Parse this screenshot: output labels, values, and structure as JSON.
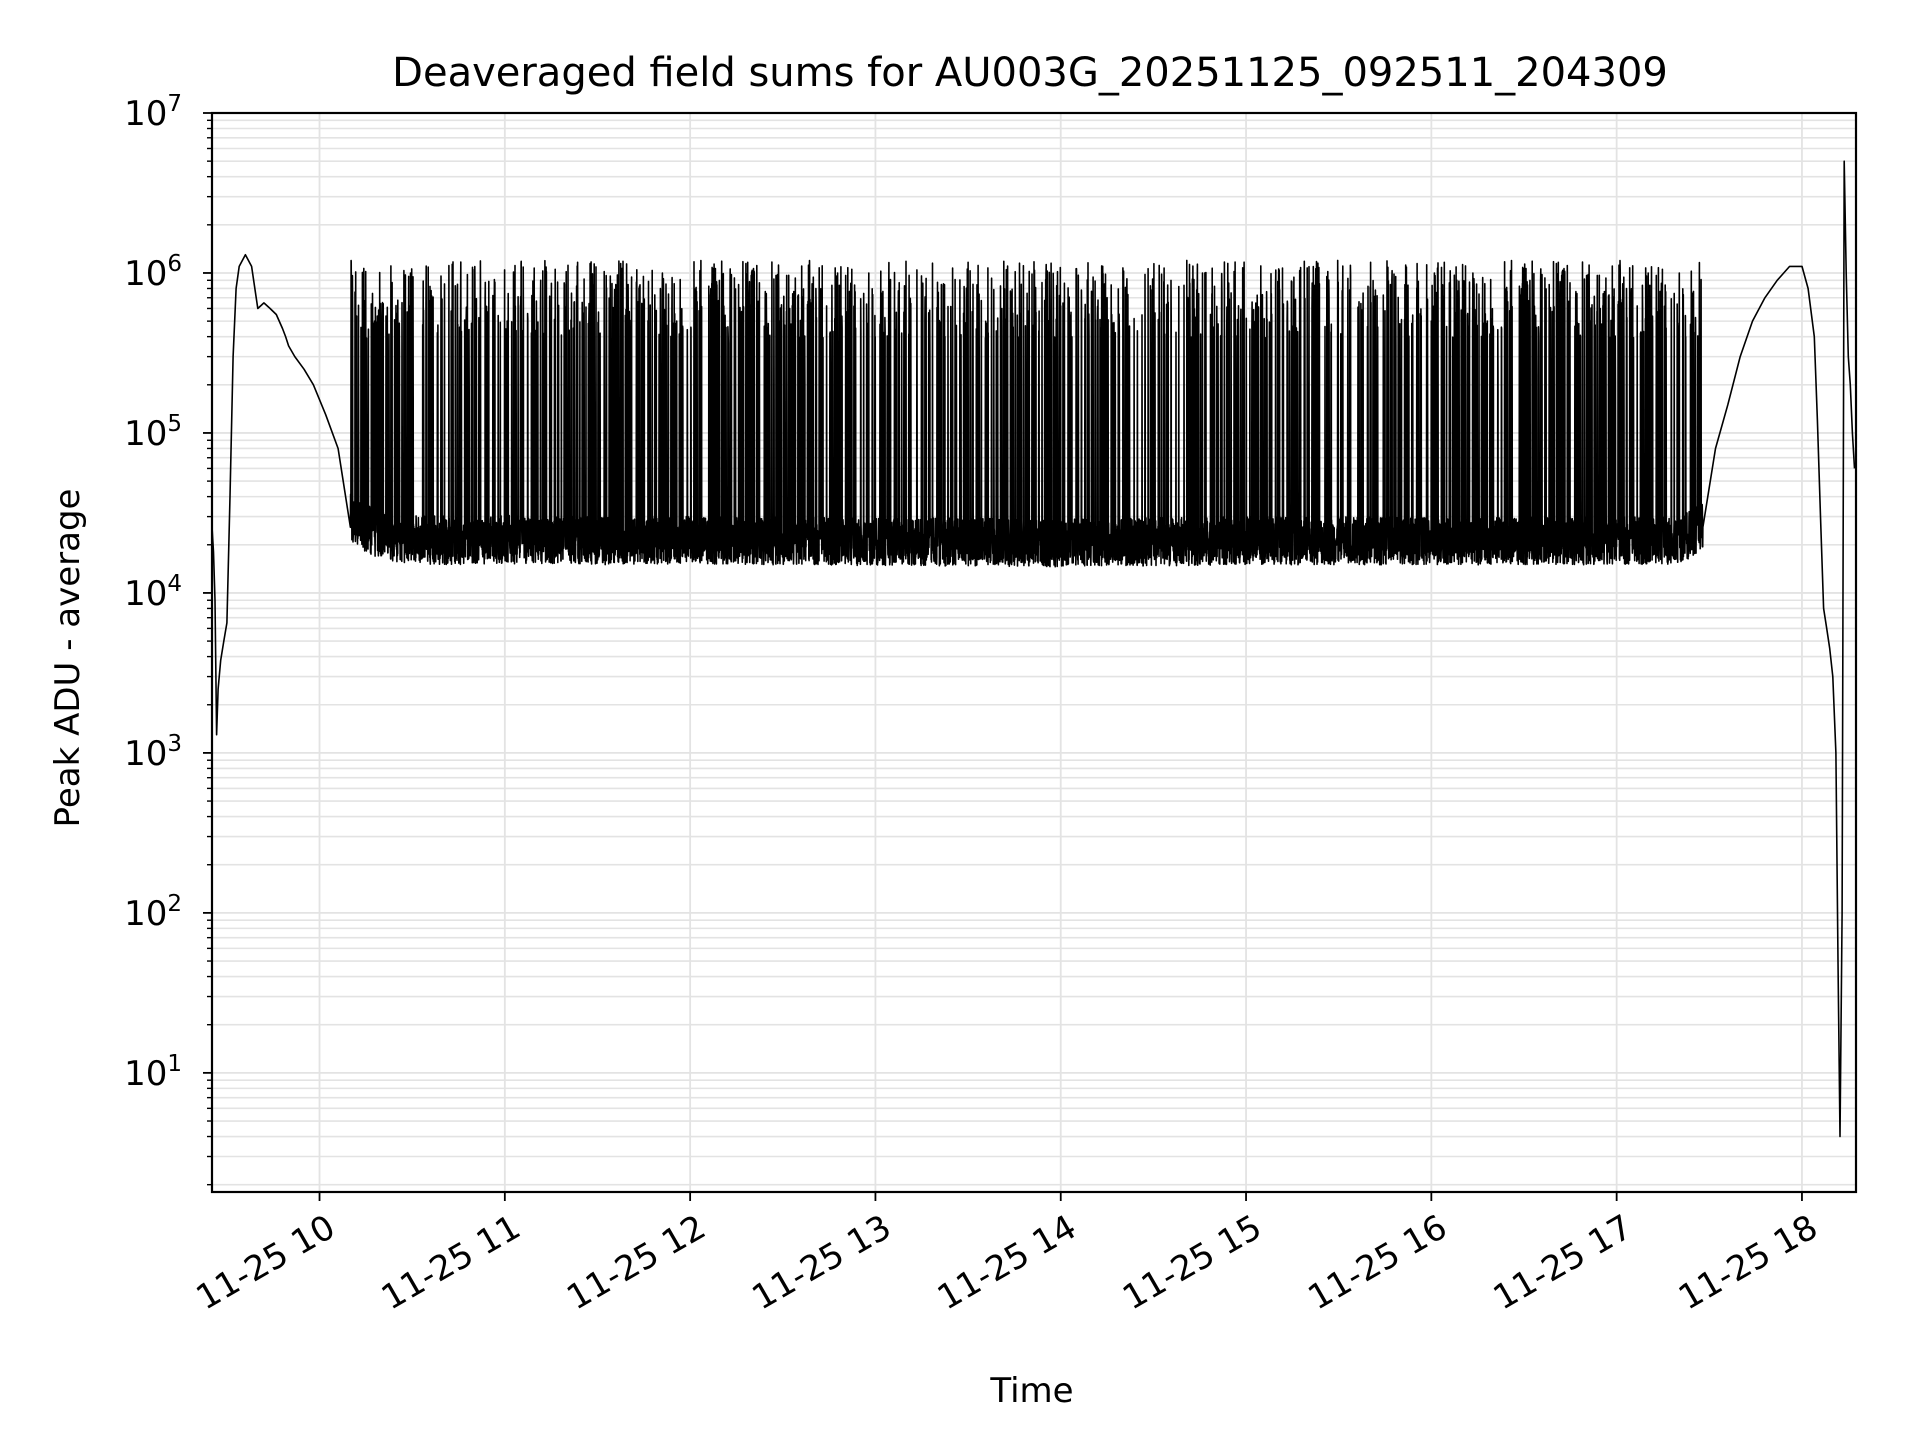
{
  "chart_data": {
    "type": "line",
    "title": "Deaveraged field sums for AU003G_20251125_092511_204309",
    "xlabel": "Time",
    "ylabel": "Peak ADU - average",
    "yscale": "log",
    "ylim": [
      1.8,
      10000000
    ],
    "xlim": [
      "2025-11-25 09:25:11",
      "2025-11-25 18:17:30"
    ],
    "x_ticks": [
      {
        "time": "2025-11-25 10:00:00",
        "label": "11-25 10"
      },
      {
        "time": "2025-11-25 11:00:00",
        "label": "11-25 11"
      },
      {
        "time": "2025-11-25 12:00:00",
        "label": "11-25 12"
      },
      {
        "time": "2025-11-25 13:00:00",
        "label": "11-25 13"
      },
      {
        "time": "2025-11-25 14:00:00",
        "label": "11-25 14"
      },
      {
        "time": "2025-11-25 15:00:00",
        "label": "11-25 15"
      },
      {
        "time": "2025-11-25 16:00:00",
        "label": "11-25 16"
      },
      {
        "time": "2025-11-25 17:00:00",
        "label": "11-25 17"
      },
      {
        "time": "2025-11-25 18:00:00",
        "label": "11-25 18"
      }
    ],
    "y_ticks": [
      {
        "value": 10,
        "base": "10",
        "exp": "1"
      },
      {
        "value": 100,
        "base": "10",
        "exp": "2"
      },
      {
        "value": 1000,
        "base": "10",
        "exp": "3"
      },
      {
        "value": 10000,
        "base": "10",
        "exp": "4"
      },
      {
        "value": 100000,
        "base": "10",
        "exp": "5"
      },
      {
        "value": 1000000,
        "base": "10",
        "exp": "6"
      },
      {
        "value": 10000000,
        "base": "10",
        "exp": "7"
      }
    ],
    "grid": true,
    "minor_grid": true,
    "line_color": "#000000",
    "grid_color": "#e3e3e3",
    "series": [
      {
        "x": [
          "2025-11-25 09:25:11",
          "2025-11-25 09:25:40",
          "2025-11-25 09:26:10",
          "2025-11-25 09:26:40",
          "2025-11-25 09:27:10",
          "2025-11-25 09:28:00",
          "2025-11-25 09:29:00",
          "2025-11-25 09:30:00",
          "2025-11-25 09:31:00",
          "2025-11-25 09:32:00",
          "2025-11-25 09:33:00",
          "2025-11-25 09:34:00",
          "2025-11-25 09:36:00",
          "2025-11-25 09:38:00",
          "2025-11-25 09:40:00",
          "2025-11-25 09:42:00",
          "2025-11-25 09:44:00",
          "2025-11-25 09:46:00",
          "2025-11-25 09:48:00",
          "2025-11-25 09:49:00",
          "2025-11-25 09:50:00",
          "2025-11-25 09:52:00",
          "2025-11-25 09:55:00",
          "2025-11-25 09:58:00",
          "2025-11-25 10:02:00",
          "2025-11-25 10:06:00",
          "2025-11-25 10:10:00",
          "2025-11-25 10:14:00",
          "2025-11-25 10:18:00",
          "2025-11-25 10:22:00",
          "2025-11-25 10:30:00",
          "2025-11-25 10:45:00",
          "2025-11-25 11:00:00",
          "2025-11-25 11:30:00",
          "2025-11-25 12:00:00",
          "2025-11-25 12:15:00",
          "2025-11-25 12:30:00",
          "2025-11-25 13:00:00",
          "2025-11-25 13:30:00",
          "2025-11-25 14:00:00",
          "2025-11-25 14:30:00",
          "2025-11-25 15:00:00",
          "2025-11-25 15:30:00",
          "2025-11-25 16:00:00",
          "2025-11-25 16:30:00",
          "2025-11-25 17:00:00",
          "2025-11-25 17:15:00",
          "2025-11-25 17:20:00",
          "2025-11-25 17:24:00",
          "2025-11-25 17:28:00",
          "2025-11-25 17:32:00",
          "2025-11-25 17:36:00",
          "2025-11-25 17:40:00",
          "2025-11-25 17:44:00",
          "2025-11-25 17:48:00",
          "2025-11-25 17:52:00",
          "2025-11-25 17:56:00",
          "2025-11-25 18:00:00",
          "2025-11-25 18:02:00",
          "2025-11-25 18:04:00",
          "2025-11-25 18:05:00",
          "2025-11-25 18:06:00",
          "2025-11-25 18:07:00",
          "2025-11-25 18:08:00",
          "2025-11-25 18:09:00",
          "2025-11-25 18:10:00",
          "2025-11-25 18:11:00",
          "2025-11-25 18:11:40",
          "2025-11-25 18:12:20",
          "2025-11-25 18:13:00",
          "2025-11-25 18:13:40",
          "2025-11-25 18:14:20",
          "2025-11-25 18:15:00",
          "2025-11-25 18:15:40",
          "2025-11-25 18:16:20",
          "2025-11-25 18:17:00"
        ],
        "y": [
          26000,
          18000,
          9000,
          1300,
          2500,
          3800,
          5000,
          6500,
          40000,
          300000,
          800000,
          1100000,
          1300000,
          1100000,
          600000,
          650000,
          600000,
          550000,
          450000,
          400000,
          350000,
          300000,
          250000,
          200000,
          130000,
          80000,
          55000,
          40000,
          32000,
          28000,
          25000,
          24000,
          25000,
          24000,
          25000,
          24000,
          24000,
          23000,
          23000,
          22000,
          23000,
          24000,
          24000,
          24000,
          24000,
          24000,
          24000,
          25000,
          30000,
          45000,
          80000,
          150000,
          300000,
          500000,
          700000,
          900000,
          1100000,
          1100000,
          800000,
          400000,
          120000,
          30000,
          8000,
          6000,
          4500,
          3000,
          1000,
          50,
          4,
          100,
          5000000,
          1000000,
          300000,
          200000,
          100000,
          60000
        ]
      }
    ],
    "spike_band": {
      "start": "2025-11-25 10:10:00",
      "end": "2025-11-25 17:28:00",
      "low": [
        15000,
        30000
      ],
      "high": [
        100000,
        1200000
      ]
    }
  }
}
